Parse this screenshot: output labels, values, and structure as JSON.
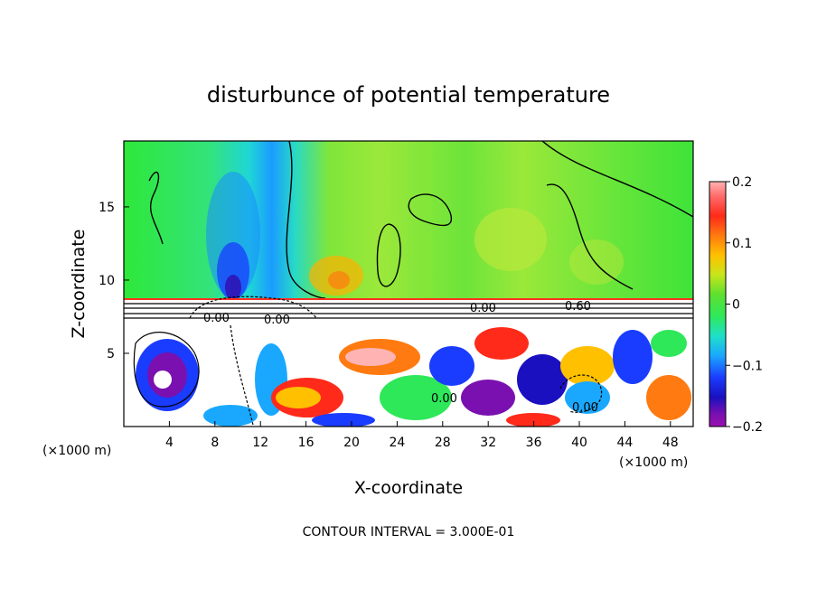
{
  "chart_data": {
    "type": "heatmap",
    "title": "disturbunce of potential temperature",
    "xlabel": "X-coordinate",
    "ylabel": "Z-coordinate",
    "x_unit": "(×1000 m)",
    "y_unit": "(×1000 m)",
    "xlim": [
      0,
      50
    ],
    "ylim": [
      0,
      19.5
    ],
    "x_ticks": [
      "4",
      "8",
      "12",
      "16",
      "20",
      "24",
      "28",
      "32",
      "36",
      "40",
      "44",
      "48"
    ],
    "y_ticks": [
      "5",
      "10",
      "15"
    ],
    "colorbar": {
      "min": -0.2,
      "max": 0.2,
      "tick_labels": [
        "0.2",
        "0.1",
        "0",
        "−0.1",
        "−0.2"
      ]
    },
    "contour_interval_text": "CONTOUR INTERVAL = 3.000E-01",
    "contour_labels": [
      "0.60",
      "0.00",
      "0.00",
      "0.00",
      "0.00",
      "0.00"
    ],
    "overlay": {
      "stable_layer_z": [
        7.5,
        9.0
      ]
    }
  }
}
